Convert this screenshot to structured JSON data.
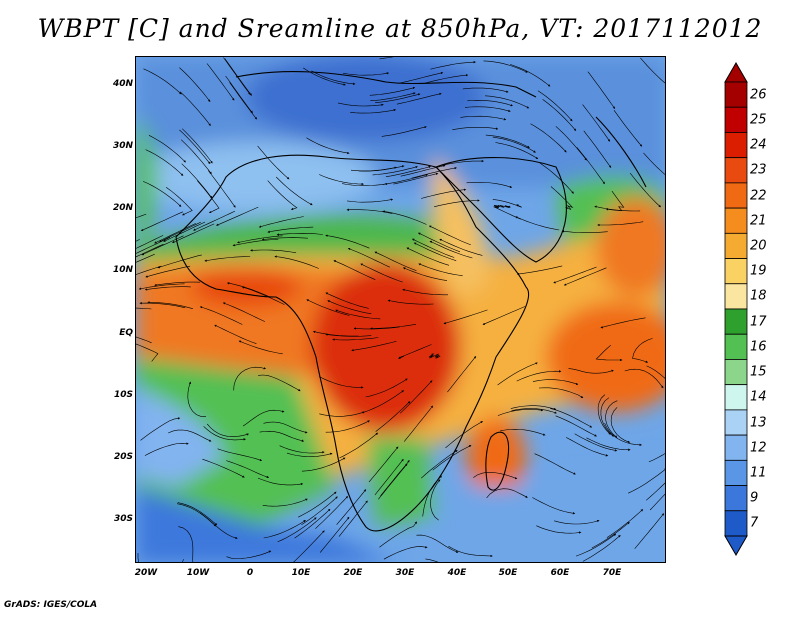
{
  "title": "WBPT [C] and Sreamline at 850hPa, VT: 2017112012",
  "credit": "GrADS: IGES/COLA",
  "lat_labels": [
    "40N",
    "30N",
    "20N",
    "10N",
    "EQ",
    "10S",
    "20S",
    "30S"
  ],
  "lon_labels": [
    "20W",
    "10W",
    "0",
    "10E",
    "20E",
    "30E",
    "40E",
    "50E",
    "60E",
    "70E"
  ],
  "colorbar": {
    "labels": [
      "26",
      "25",
      "24",
      "23",
      "22",
      "21",
      "20",
      "19",
      "18",
      "17",
      "16",
      "15",
      "14",
      "13",
      "12",
      "11",
      "9",
      "7"
    ],
    "colors": [
      "#a50000",
      "#c00000",
      "#dc1e00",
      "#e84a10",
      "#f06a14",
      "#f58c1e",
      "#f5aa32",
      "#fad264",
      "#fae6a0",
      "#2ea02e",
      "#52c052",
      "#8cd68c",
      "#cef5ee",
      "#aad2f5",
      "#82b4f0",
      "#5a96e6",
      "#3c78dc",
      "#1e5ac8"
    ]
  },
  "colors": {
    "hot_core": "#cc1a00",
    "warm": "#f07820",
    "tropical": "#f5c060",
    "green": "#4cb84c",
    "cool": "#6ea6e8",
    "cold": "#2a66d0"
  }
}
